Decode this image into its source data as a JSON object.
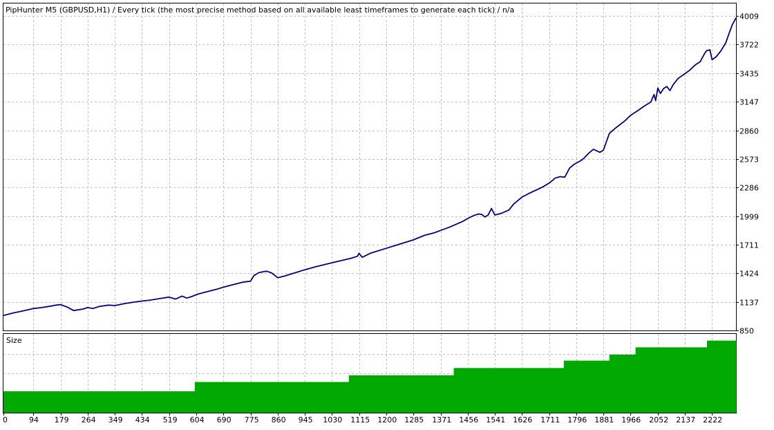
{
  "chart_data": [
    {
      "type": "line",
      "title": "PipHunter M5 (GBPUSD,H1) / Every tick (the most precise method based on all available least timeframes to generate each tick) / n/a",
      "yticks": [
        850,
        1137,
        1424,
        1711,
        1999,
        2286,
        2573,
        2860,
        3147,
        3435,
        3722,
        4009
      ],
      "ylim": [
        850,
        4135
      ],
      "xlim": [
        0,
        2297
      ],
      "grid": true,
      "colors": {
        "line": "#000080",
        "grid": "#c0c0c0",
        "frame": "#000000"
      },
      "series": [
        {
          "x": [
            0,
            30,
            60,
            94,
            120,
            150,
            165,
            179,
            200,
            220,
            250,
            264,
            280,
            300,
            330,
            349,
            380,
            410,
            434,
            460,
            490,
            519,
            540,
            560,
            575,
            590,
            610,
            640,
            670,
            690,
            720,
            750,
            775,
            785,
            800,
            815,
            825,
            840,
            860,
            880,
            900,
            945,
            980,
            1030,
            1070,
            1090,
            1110,
            1115,
            1125,
            1150,
            1200,
            1240,
            1285,
            1320,
            1350,
            1371,
            1400,
            1440,
            1456,
            1475,
            1490,
            1500,
            1510,
            1520,
            1530,
            1541,
            1560,
            1585,
            1600,
            1626,
            1650,
            1670,
            1690,
            1711,
            1730,
            1745,
            1760,
            1775,
            1790,
            1810,
            1820,
            1835,
            1850,
            1870,
            1881,
            1900,
            1920,
            1950,
            1966,
            1990,
            2010,
            2030,
            2040,
            2045,
            2052,
            2060,
            2070,
            2080,
            2090,
            2100,
            2115,
            2137,
            2150,
            2170,
            2185,
            2195,
            2200,
            2205,
            2215,
            2222,
            2235,
            2250,
            2265,
            2275,
            2285,
            2297
          ],
          "y": [
            1000,
            1025,
            1045,
            1070,
            1080,
            1095,
            1105,
            1110,
            1085,
            1050,
            1065,
            1080,
            1070,
            1090,
            1105,
            1100,
            1120,
            1135,
            1145,
            1155,
            1170,
            1185,
            1165,
            1195,
            1175,
            1190,
            1215,
            1240,
            1265,
            1285,
            1310,
            1335,
            1345,
            1400,
            1430,
            1440,
            1445,
            1430,
            1380,
            1395,
            1415,
            1460,
            1490,
            1530,
            1560,
            1575,
            1595,
            1625,
            1585,
            1625,
            1675,
            1715,
            1760,
            1805,
            1830,
            1855,
            1890,
            1945,
            1975,
            2005,
            2020,
            2015,
            1990,
            2010,
            2075,
            2010,
            2025,
            2060,
            2120,
            2190,
            2230,
            2260,
            2290,
            2330,
            2380,
            2395,
            2390,
            2480,
            2520,
            2555,
            2580,
            2630,
            2670,
            2640,
            2660,
            2830,
            2885,
            2960,
            3010,
            3060,
            3105,
            3145,
            3220,
            3160,
            3285,
            3230,
            3280,
            3300,
            3260,
            3320,
            3380,
            3430,
            3460,
            3520,
            3550,
            3610,
            3640,
            3660,
            3670,
            3570,
            3600,
            3660,
            3740,
            3830,
            3920,
            3990
          ]
        }
      ]
    },
    {
      "type": "area",
      "title": "Size",
      "xticks": [
        0,
        94,
        179,
        264,
        349,
        434,
        519,
        604,
        690,
        775,
        860,
        945,
        1030,
        1115,
        1200,
        1285,
        1371,
        1456,
        1541,
        1626,
        1711,
        1796,
        1881,
        1966,
        2052,
        2137,
        2222
      ],
      "xlim": [
        0,
        2297
      ],
      "ylim": [
        0,
        1
      ],
      "grid": true,
      "colors": {
        "fill": "#00aa00",
        "grid": "#c0c0c0",
        "frame": "#000000"
      },
      "steps": [
        {
          "x0": 0,
          "x1": 600,
          "v": 0.272
        },
        {
          "x0": 600,
          "x1": 1083,
          "v": 0.39
        },
        {
          "x0": 1083,
          "x1": 1412,
          "v": 0.475
        },
        {
          "x0": 1412,
          "x1": 1757,
          "v": 0.567
        },
        {
          "x0": 1757,
          "x1": 1900,
          "v": 0.661
        },
        {
          "x0": 1900,
          "x1": 1982,
          "v": 0.737
        },
        {
          "x0": 1982,
          "x1": 2206,
          "v": 0.83
        },
        {
          "x0": 2206,
          "x1": 2297,
          "v": 0.915
        }
      ]
    }
  ]
}
